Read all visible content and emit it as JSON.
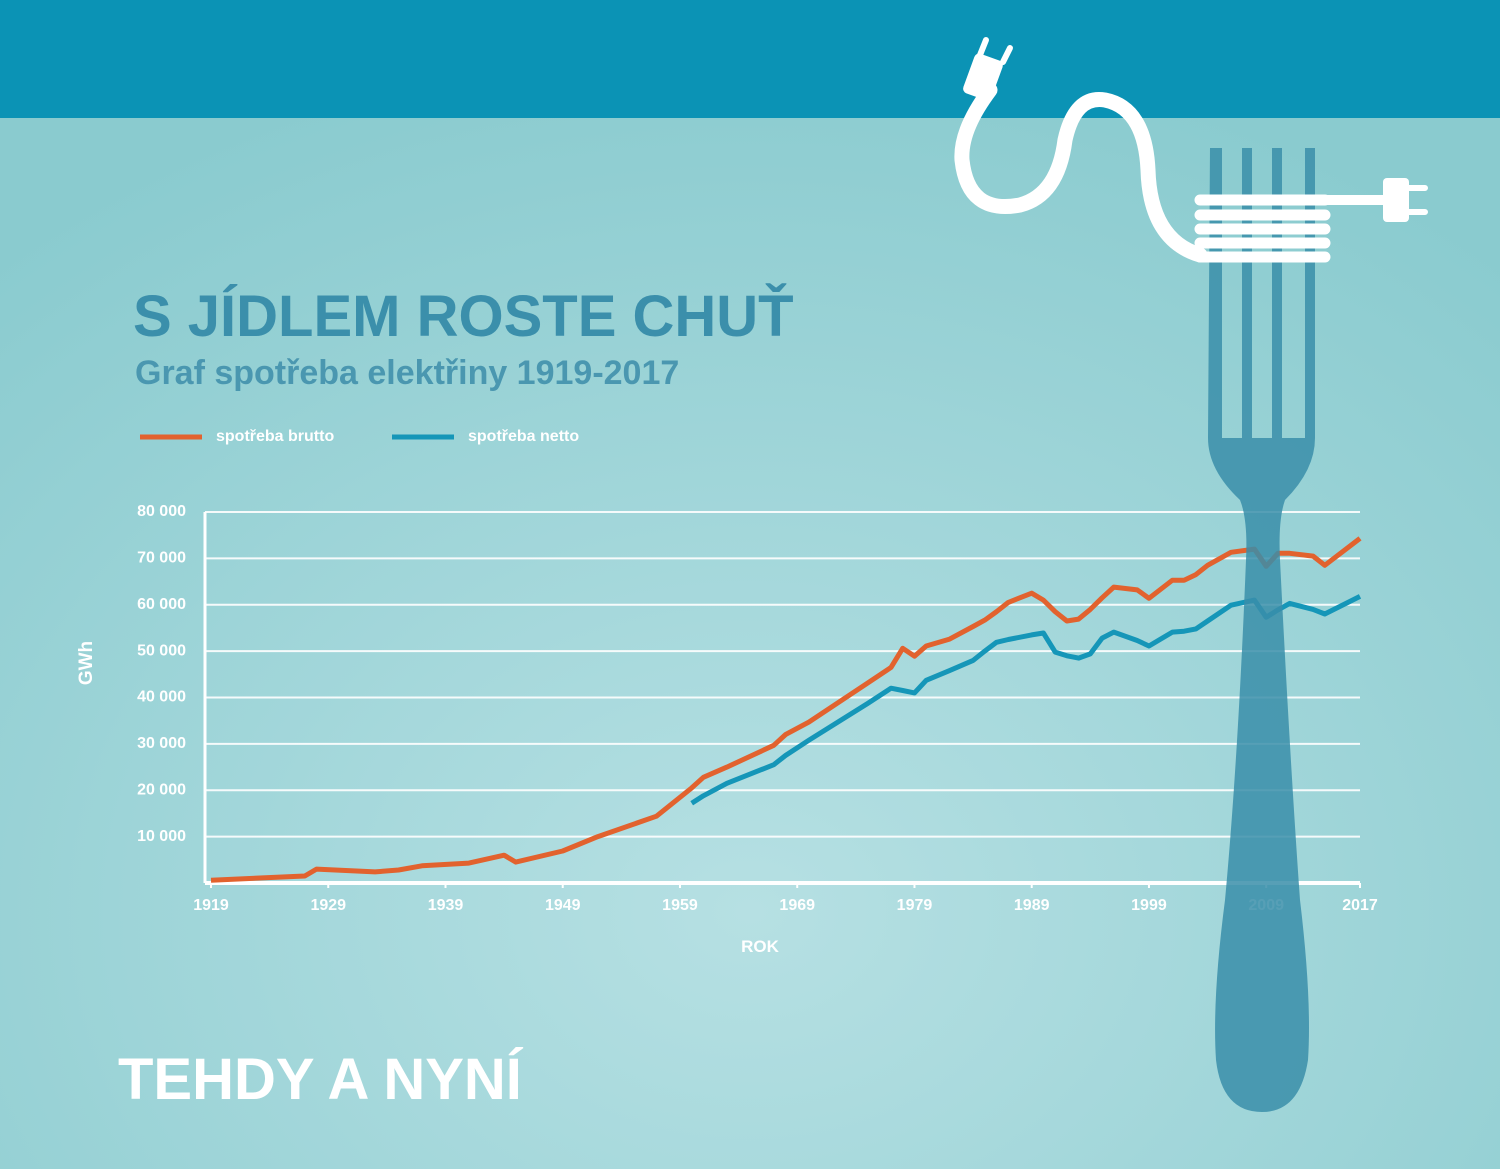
{
  "chart_data": {
    "type": "line",
    "title": "S JÍDLEM ROSTE CHUŤ",
    "subtitle": "Graf spotřeba elektřiny 1919-2017",
    "annotation": "TEHDY A NYNÍ",
    "x_label": "ROK",
    "y_label": "GWh",
    "x": [
      1919,
      1927,
      1928,
      1933,
      1935,
      1937,
      1941,
      1944,
      1945,
      1949,
      1952,
      1957,
      1960,
      1961,
      1963,
      1967,
      1968,
      1970,
      1975,
      1977,
      1978,
      1979,
      1980,
      1982,
      1984,
      1985,
      1986,
      1987,
      1989,
      1990,
      1991,
      1992,
      1993,
      1994,
      1995,
      1996,
      1998,
      1999,
      2001,
      2002,
      2003,
      2004,
      2006,
      2008,
      2009,
      2010,
      2011,
      2013,
      2014,
      2017
    ],
    "series": [
      {
        "name": "spotřeba brutto",
        "color": "#e2622e",
        "values": [
          600,
          1500,
          3000,
          2400,
          2800,
          3700,
          4300,
          6000,
          4500,
          6900,
          10000,
          14400,
          20500,
          22800,
          25000,
          29700,
          32000,
          34700,
          43100,
          46500,
          50600,
          48900,
          51100,
          52600,
          55300,
          56700,
          58500,
          60500,
          62500,
          61000,
          58500,
          56500,
          56900,
          59000,
          61500,
          63800,
          63200,
          61400,
          65300,
          65300,
          66500,
          68500,
          71300,
          72000,
          68300,
          71100,
          71100,
          70500,
          68500,
          74300
        ]
      },
      {
        "name": "spotřeba netto",
        "color": "#1596b8",
        "values": [
          null,
          null,
          null,
          null,
          null,
          null,
          null,
          null,
          null,
          null,
          null,
          null,
          17200,
          18800,
          21500,
          25500,
          27500,
          30800,
          38700,
          42000,
          41500,
          41000,
          43700,
          45800,
          48000,
          50000,
          51900,
          52500,
          53500,
          53900,
          49800,
          49000,
          48500,
          49400,
          52800,
          54100,
          52300,
          51100,
          54100,
          54300,
          54800,
          56500,
          59900,
          61000,
          57300,
          58900,
          60300,
          59000,
          58000,
          61800
        ]
      }
    ],
    "xlim": [
      1919,
      2017
    ],
    "xticks": [
      1919,
      1929,
      1939,
      1949,
      1959,
      1969,
      1979,
      1989,
      1999,
      2009,
      2017
    ],
    "ylim": [
      0,
      80000
    ],
    "yticks": [
      {
        "value": 10000,
        "label": "10 000"
      },
      {
        "value": 20000,
        "label": "20 000"
      },
      {
        "value": 30000,
        "label": "30 000"
      },
      {
        "value": 40000,
        "label": "40 000"
      },
      {
        "value": 50000,
        "label": "50 000"
      },
      {
        "value": 60000,
        "label": "60 000"
      },
      {
        "value": 70000,
        "label": "70 000"
      },
      {
        "value": 80000,
        "label": "80 000"
      }
    ],
    "grid": true
  }
}
